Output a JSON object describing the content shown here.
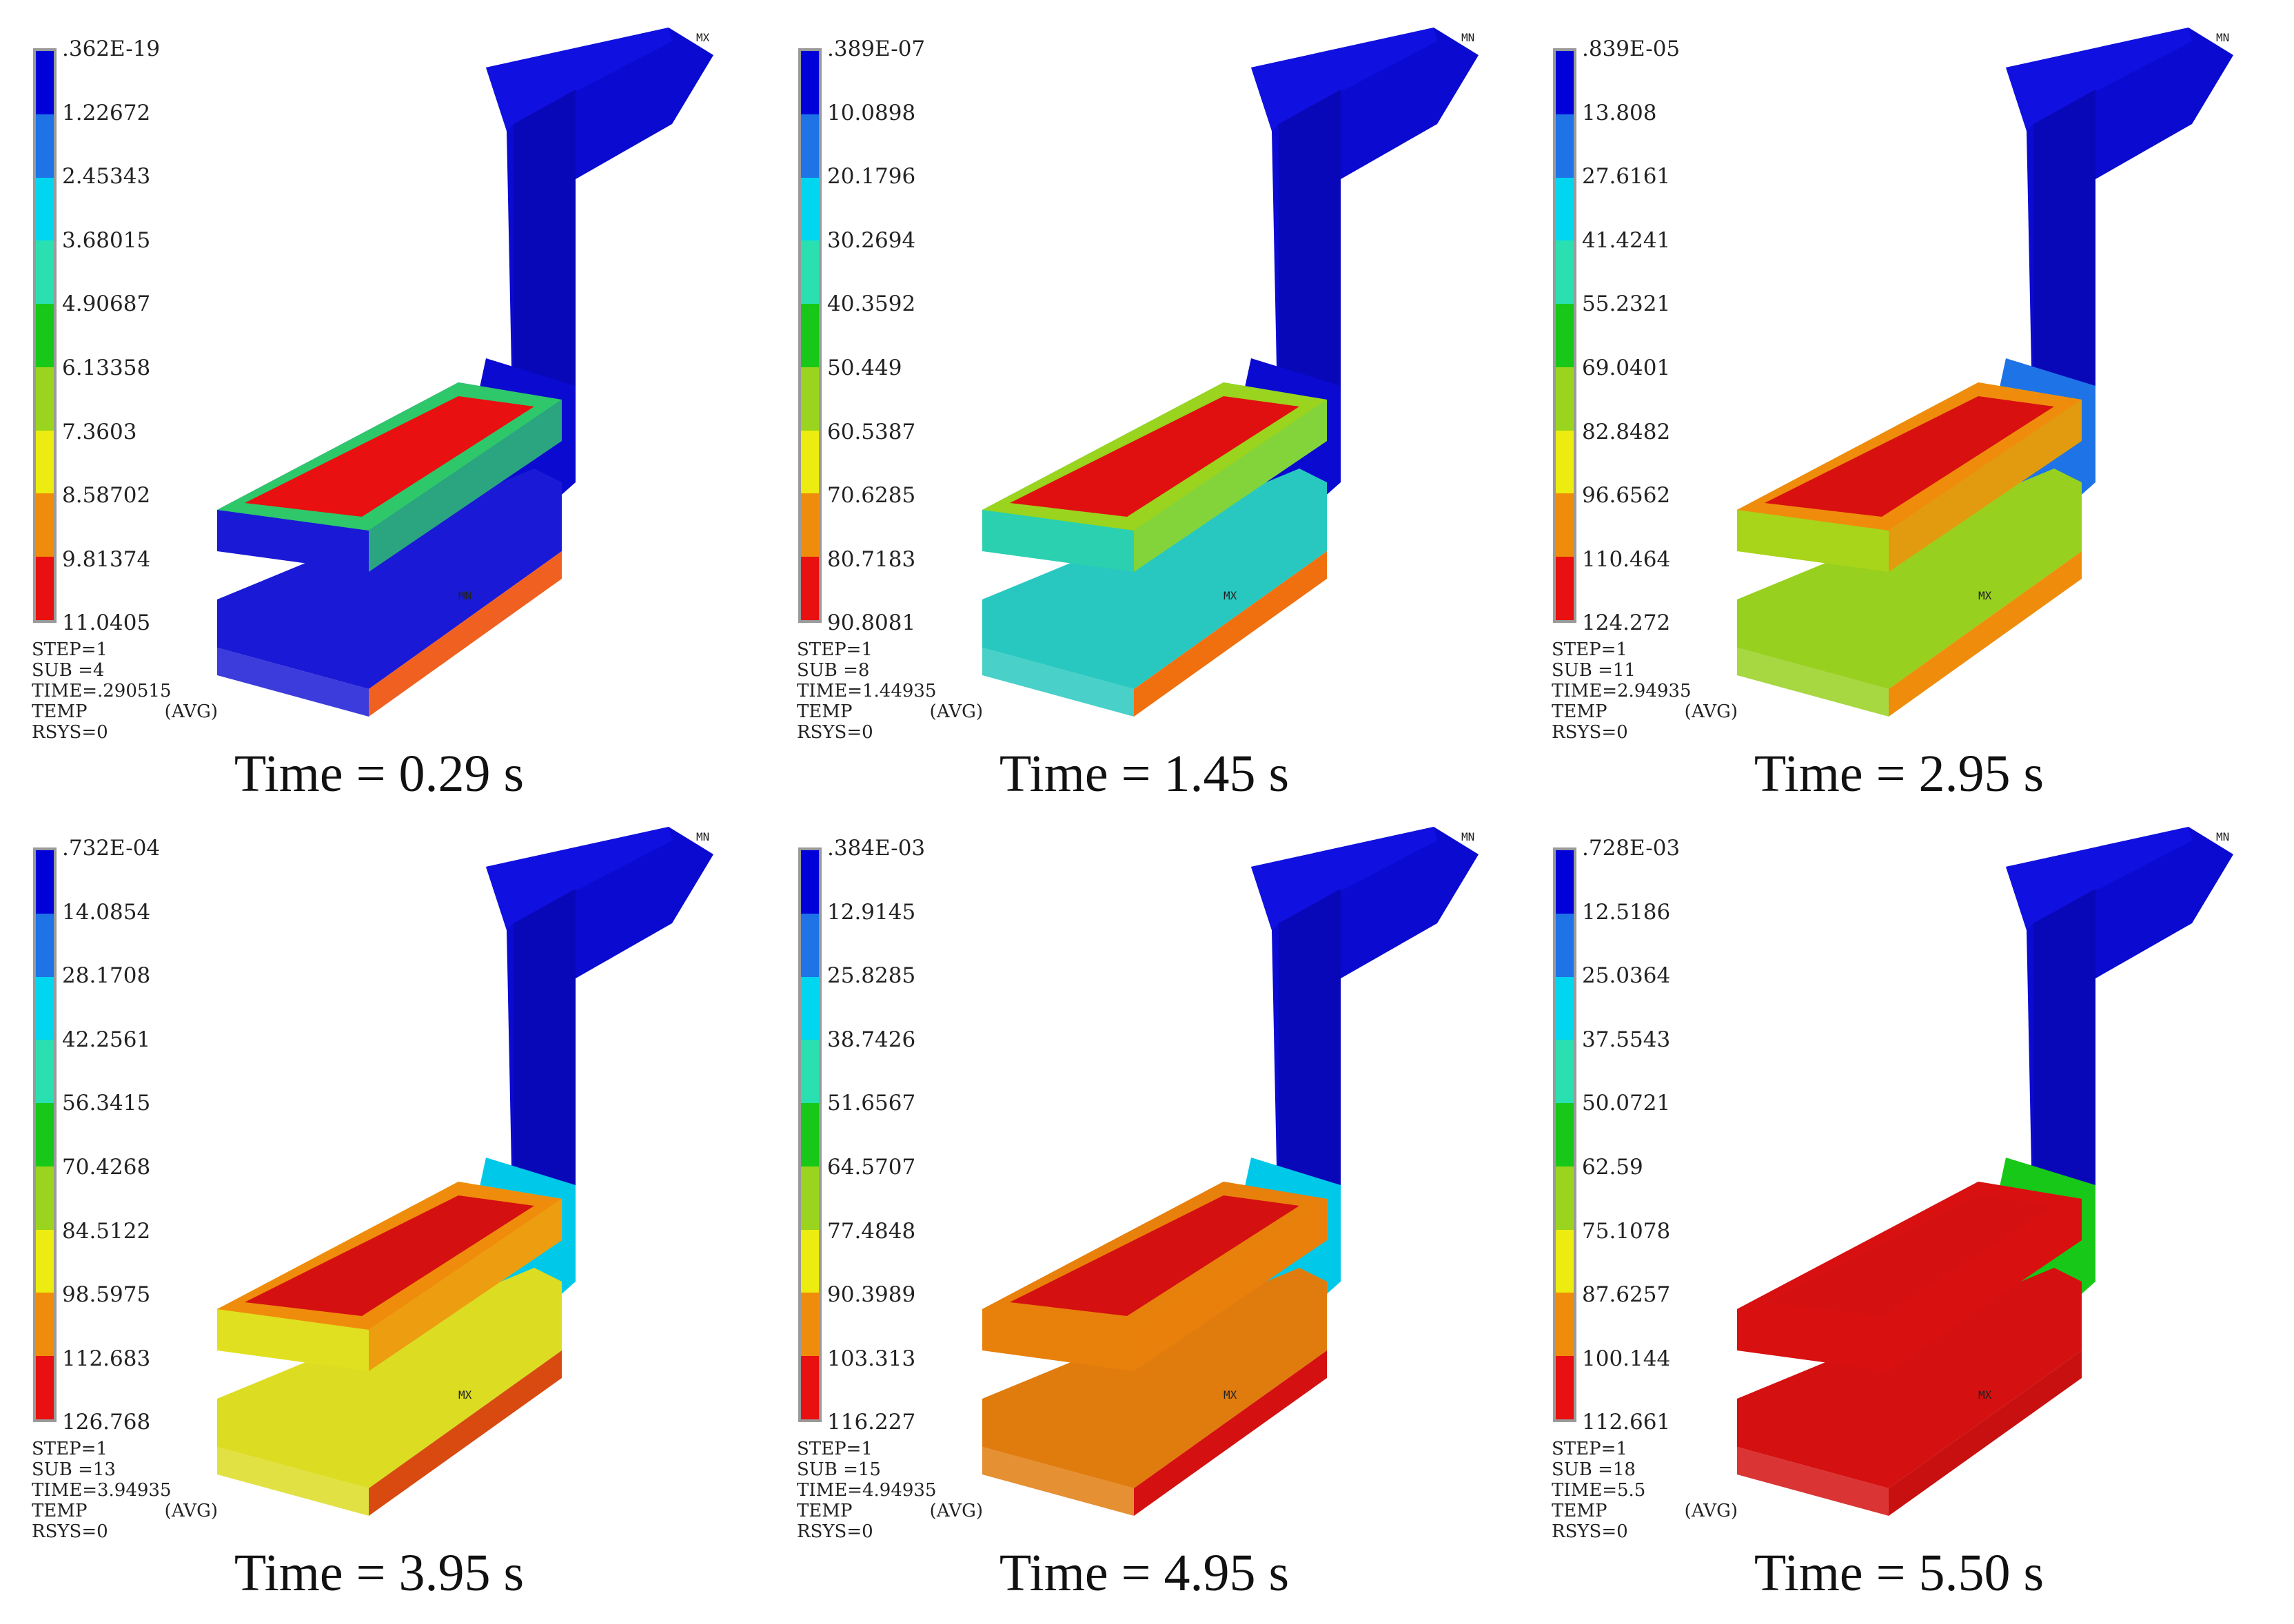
{
  "colors": {
    "scale": [
      "#0000d8",
      "#1e73e6",
      "#00d6f0",
      "#2ae0b0",
      "#18c818",
      "#9ad41e",
      "#ecec10",
      "#f08c0c",
      "#e81010"
    ],
    "cold": "#0a0ad0",
    "hot": "#d41010"
  },
  "panels": [
    {
      "legend": [
        ".362E-19",
        "1.22672",
        "2.45343",
        "3.68015",
        "4.90687",
        "6.13358",
        "7.3603",
        "8.58702",
        "9.81374",
        "11.0405"
      ],
      "step": "STEP=1",
      "sub": "SUB =4",
      "time": "TIME=.290515",
      "temp": "TEMP",
      "avg": "(AVG)",
      "rsys": "RSYS=0",
      "corner_tag": "MX",
      "inner_tag": "MN",
      "caption": "Time = 0.29 s",
      "fills": {
        "upper": "#1a1ad6",
        "top_band": "#2ec86a",
        "top_core": "#e81010",
        "lower": "#1a1ad6",
        "lower_edge": "#f06020",
        "bend": "#0a0ad0"
      }
    },
    {
      "legend": [
        ".389E-07",
        "10.0898",
        "20.1796",
        "30.2694",
        "40.3592",
        "50.449",
        "60.5387",
        "70.6285",
        "80.7183",
        "90.8081"
      ],
      "step": "STEP=1",
      "sub": "SUB =8",
      "time": "TIME=1.44935",
      "temp": "TEMP",
      "avg": "(AVG)",
      "rsys": "RSYS=0",
      "corner_tag": "MN",
      "inner_tag": "MX",
      "caption": "Time = 1.45 s",
      "fills": {
        "upper": "#2ad0b0",
        "top_band": "#9ad41e",
        "top_core": "#e01010",
        "lower": "#28c8c0",
        "lower_edge": "#f07010",
        "bend": "#0a0ad0"
      }
    },
    {
      "legend": [
        ".839E-05",
        "13.808",
        "27.6161",
        "41.4241",
        "55.2321",
        "69.0401",
        "82.8482",
        "96.6562",
        "110.464",
        "124.272"
      ],
      "step": "STEP=1",
      "sub": "SUB =11",
      "time": "TIME=2.94935",
      "temp": "TEMP",
      "avg": "(AVG)",
      "rsys": "RSYS=0",
      "corner_tag": "MN",
      "inner_tag": "MX",
      "caption": "Time = 2.95 s",
      "fills": {
        "upper": "#a8d41a",
        "top_band": "#f08c0c",
        "top_core": "#d81010",
        "lower": "#98d020",
        "lower_edge": "#f08c0c",
        "bend": "#1e73e6"
      }
    },
    {
      "legend": [
        ".732E-04",
        "14.0854",
        "28.1708",
        "42.2561",
        "56.3415",
        "70.4268",
        "84.5122",
        "98.5975",
        "112.683",
        "126.768"
      ],
      "step": "STEP=1",
      "sub": "SUB =13",
      "time": "TIME=3.94935",
      "temp": "TEMP",
      "avg": "(AVG)",
      "rsys": "RSYS=0",
      "corner_tag": "MN",
      "inner_tag": "MX",
      "caption": "Time = 3.95 s",
      "fills": {
        "upper": "#e0e020",
        "top_band": "#f08c0c",
        "top_core": "#d41010",
        "lower": "#dcdc22",
        "lower_edge": "#d84a10",
        "bend": "#00c8e8"
      }
    },
    {
      "legend": [
        ".384E-03",
        "12.9145",
        "25.8285",
        "38.7426",
        "51.6567",
        "64.5707",
        "77.4848",
        "90.3989",
        "103.313",
        "116.227"
      ],
      "step": "STEP=1",
      "sub": "SUB =15",
      "time": "TIME=4.94935",
      "temp": "TEMP",
      "avg": "(AVG)",
      "rsys": "RSYS=0",
      "corner_tag": "MN",
      "inner_tag": "MX",
      "caption": "Time = 4.95 s",
      "fills": {
        "upper": "#e8800c",
        "top_band": "#e8800c",
        "top_core": "#d41010",
        "lower": "#e07c0e",
        "lower_edge": "#d41010",
        "bend": "#00c8e8"
      }
    },
    {
      "legend": [
        ".728E-03",
        "12.5186",
        "25.0364",
        "37.5543",
        "50.0721",
        "62.59",
        "75.1078",
        "87.6257",
        "100.144",
        "112.661"
      ],
      "step": "STEP=1",
      "sub": "SUB =18",
      "time": "TIME=5.5",
      "temp": "TEMP",
      "avg": "(AVG)",
      "rsys": "RSYS=0",
      "corner_tag": "MN",
      "inner_tag": "MX",
      "caption": "Time = 5.50 s",
      "fills": {
        "upper": "#d81010",
        "top_band": "#d81010",
        "top_core": "#d41010",
        "lower": "#d41010",
        "lower_edge": "#c81010",
        "bend": "#18c818"
      }
    }
  ]
}
